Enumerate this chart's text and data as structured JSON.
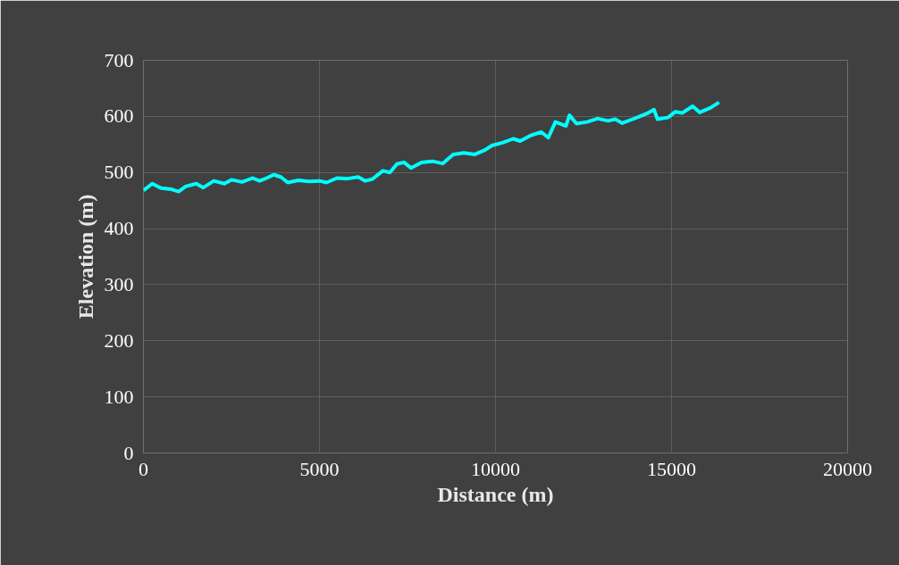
{
  "chart_data": {
    "type": "line",
    "xlabel": "Distance (m)",
    "ylabel": "Elevation (m)",
    "xlim": [
      0,
      20000
    ],
    "xticks": [
      0,
      5000,
      10000,
      15000,
      20000
    ],
    "ylim": [
      0,
      700
    ],
    "yticks": [
      0,
      100,
      200,
      300,
      400,
      500,
      600,
      700
    ],
    "grid": true,
    "marker": "none",
    "line_style": "solid",
    "series": [
      {
        "color": "#00ffff",
        "x": [
          0,
          250,
          500,
          800,
          1000,
          1200,
          1500,
          1700,
          2000,
          2300,
          2500,
          2800,
          3100,
          3300,
          3500,
          3700,
          3900,
          4100,
          4400,
          4700,
          5000,
          5200,
          5500,
          5800,
          6100,
          6300,
          6500,
          6800,
          7000,
          7200,
          7400,
          7600,
          7900,
          8200,
          8500,
          8800,
          9100,
          9400,
          9700,
          9900,
          10200,
          10500,
          10700,
          11000,
          11300,
          11500,
          11700,
          12000,
          12100,
          12300,
          12600,
          12900,
          13200,
          13400,
          13600,
          13900,
          14100,
          14300,
          14500,
          14600,
          14900,
          15100,
          15300,
          15600,
          15800,
          16100,
          16350
        ],
        "values": [
          468,
          480,
          472,
          470,
          466,
          475,
          480,
          473,
          485,
          480,
          487,
          483,
          490,
          485,
          490,
          496,
          492,
          482,
          486,
          484,
          485,
          482,
          490,
          489,
          492,
          485,
          488,
          503,
          500,
          515,
          518,
          508,
          518,
          520,
          516,
          532,
          535,
          532,
          540,
          548,
          553,
          560,
          556,
          566,
          572,
          562,
          590,
          583,
          602,
          587,
          590,
          596,
          592,
          595,
          588,
          595,
          600,
          605,
          612,
          595,
          598,
          608,
          606,
          618,
          607,
          615,
          625
        ]
      }
    ]
  }
}
